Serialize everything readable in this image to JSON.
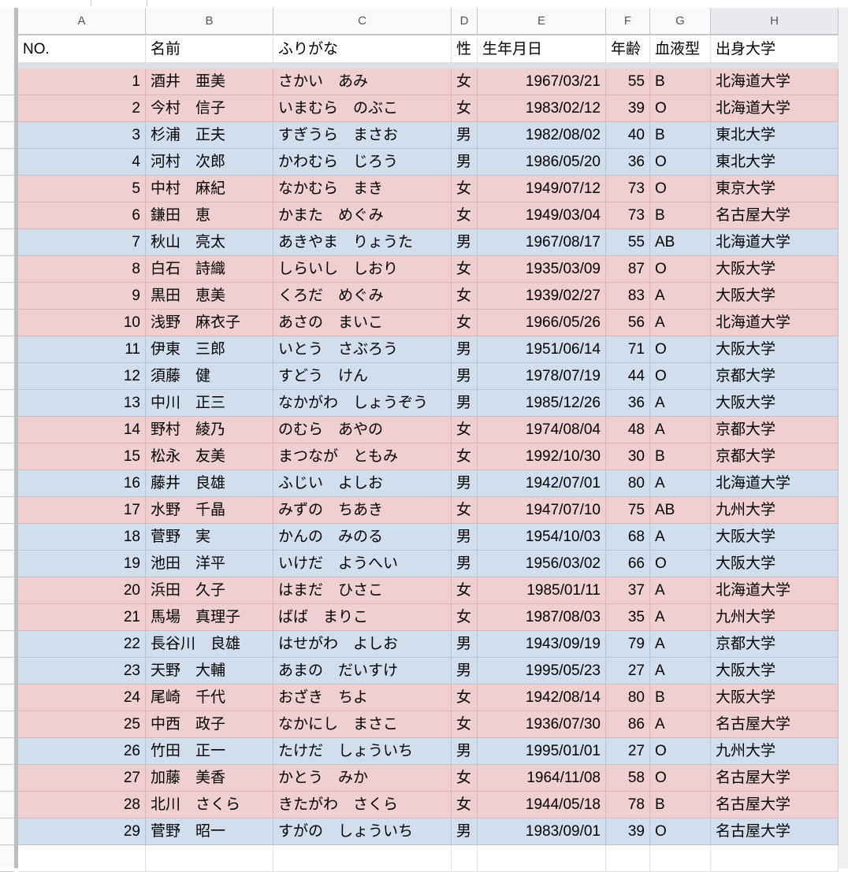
{
  "column_letters": [
    "A",
    "B",
    "C",
    "D",
    "E",
    "F",
    "G",
    "H"
  ],
  "headers": [
    "NO.",
    "名前",
    "ふりがな",
    "性",
    "生年月日",
    "年齢",
    "血液型",
    "出身大学"
  ],
  "colors": {
    "female_row": "#efcfcf",
    "male_row": "#d1deee"
  },
  "rows": [
    [
      "1",
      "酒井　亜美",
      "さかい　あみ",
      "女",
      "1967/03/21",
      "55",
      "B",
      "北海道大学"
    ],
    [
      "2",
      "今村　信子",
      "いまむら　のぶこ",
      "女",
      "1983/02/12",
      "39",
      "O",
      "北海道大学"
    ],
    [
      "3",
      "杉浦　正夫",
      "すぎうら　まさお",
      "男",
      "1982/08/02",
      "40",
      "B",
      "東北大学"
    ],
    [
      "4",
      "河村　次郎",
      "かわむら　じろう",
      "男",
      "1986/05/20",
      "36",
      "O",
      "東北大学"
    ],
    [
      "5",
      "中村　麻紀",
      "なかむら　まき",
      "女",
      "1949/07/12",
      "73",
      "O",
      "東京大学"
    ],
    [
      "6",
      "鎌田　恵",
      "かまた　めぐみ",
      "女",
      "1949/03/04",
      "73",
      "B",
      "名古屋大学"
    ],
    [
      "7",
      "秋山　亮太",
      "あきやま　りょうた",
      "男",
      "1967/08/17",
      "55",
      "AB",
      "北海道大学"
    ],
    [
      "8",
      "白石　詩織",
      "しらいし　しおり",
      "女",
      "1935/03/09",
      "87",
      "O",
      "大阪大学"
    ],
    [
      "9",
      "黒田　恵美",
      "くろだ　めぐみ",
      "女",
      "1939/02/27",
      "83",
      "A",
      "大阪大学"
    ],
    [
      "10",
      "浅野　麻衣子",
      "あさの　まいこ",
      "女",
      "1966/05/26",
      "56",
      "A",
      "北海道大学"
    ],
    [
      "11",
      "伊東　三郎",
      "いとう　さぶろう",
      "男",
      "1951/06/14",
      "71",
      "O",
      "大阪大学"
    ],
    [
      "12",
      "須藤　健",
      "すどう　けん",
      "男",
      "1978/07/19",
      "44",
      "O",
      "京都大学"
    ],
    [
      "13",
      "中川　正三",
      "なかがわ　しょうぞう",
      "男",
      "1985/12/26",
      "36",
      "A",
      "大阪大学"
    ],
    [
      "14",
      "野村　綾乃",
      "のむら　あやの",
      "女",
      "1974/08/04",
      "48",
      "A",
      "京都大学"
    ],
    [
      "15",
      "松永　友美",
      "まつなが　ともみ",
      "女",
      "1992/10/30",
      "30",
      "B",
      "京都大学"
    ],
    [
      "16",
      "藤井　良雄",
      "ふじい　よしお",
      "男",
      "1942/07/01",
      "80",
      "A",
      "北海道大学"
    ],
    [
      "17",
      "水野　千晶",
      "みずの　ちあき",
      "女",
      "1947/07/10",
      "75",
      "AB",
      "九州大学"
    ],
    [
      "18",
      "菅野　実",
      "かんの　みのる",
      "男",
      "1954/10/03",
      "68",
      "A",
      "大阪大学"
    ],
    [
      "19",
      "池田　洋平",
      "いけだ　ようへい",
      "男",
      "1956/03/02",
      "66",
      "O",
      "大阪大学"
    ],
    [
      "20",
      "浜田　久子",
      "はまだ　ひさこ",
      "女",
      "1985/01/11",
      "37",
      "A",
      "北海道大学"
    ],
    [
      "21",
      "馬場　真理子",
      "ばば　まりこ",
      "女",
      "1987/08/03",
      "35",
      "A",
      "九州大学"
    ],
    [
      "22",
      "長谷川　良雄",
      "はせがわ　よしお",
      "男",
      "1943/09/19",
      "79",
      "A",
      "京都大学"
    ],
    [
      "23",
      "天野　大輔",
      "あまの　だいすけ",
      "男",
      "1995/05/23",
      "27",
      "A",
      "大阪大学"
    ],
    [
      "24",
      "尾崎　千代",
      "おざき　ちよ",
      "女",
      "1942/08/14",
      "80",
      "B",
      "大阪大学"
    ],
    [
      "25",
      "中西　政子",
      "なかにし　まさこ",
      "女",
      "1936/07/30",
      "86",
      "A",
      "名古屋大学"
    ],
    [
      "26",
      "竹田　正一",
      "たけだ　しょういち",
      "男",
      "1995/01/01",
      "27",
      "O",
      "九州大学"
    ],
    [
      "27",
      "加藤　美香",
      "かとう　みか",
      "女",
      "1964/11/08",
      "58",
      "O",
      "名古屋大学"
    ],
    [
      "28",
      "北川　さくら",
      "きたがわ　さくら",
      "女",
      "1944/05/18",
      "78",
      "B",
      "名古屋大学"
    ],
    [
      "29",
      "菅野　昭一",
      "すがの　しょういち",
      "男",
      "1983/09/01",
      "39",
      "O",
      "名古屋大学"
    ]
  ]
}
